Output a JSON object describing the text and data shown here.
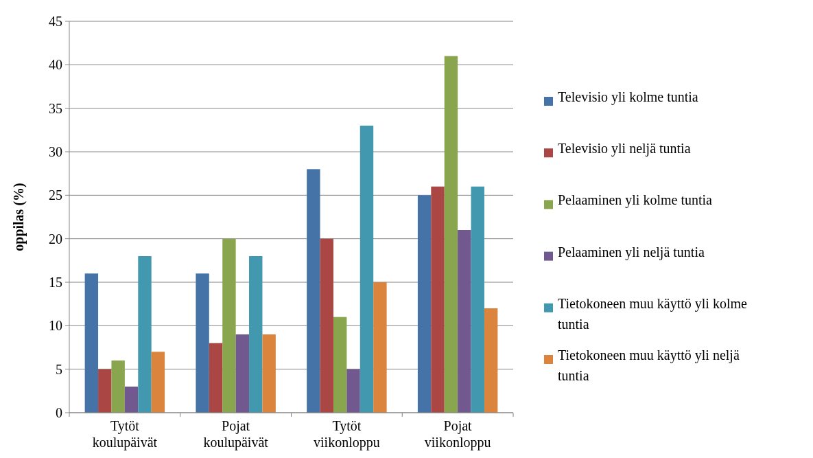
{
  "chart_data": {
    "type": "bar",
    "ylabel": "oppilas (%)",
    "categories": [
      "Tytöt koulupäivät",
      "Pojat koulupäivät",
      "Tytöt viikonloppu",
      "Pojat viikonloppu"
    ],
    "series": [
      {
        "name": "Televisio yli kolme tuntia",
        "color": "#4572a7",
        "values": [
          16,
          16,
          28,
          25
        ]
      },
      {
        "name": "Televisio yli neljä tuntia",
        "color": "#aa4643",
        "values": [
          5,
          8,
          20,
          26
        ]
      },
      {
        "name": "Pelaaminen yli kolme tuntia",
        "color": "#89a54e",
        "values": [
          6,
          20,
          11,
          41
        ]
      },
      {
        "name": "Pelaaminen yli neljä tuntia",
        "color": "#71588f",
        "values": [
          3,
          9,
          5,
          21
        ]
      },
      {
        "name": "Tietokoneen muu käyttö yli kolme tuntia",
        "color": "#4198af",
        "values": [
          18,
          18,
          33,
          26
        ]
      },
      {
        "name": "Tietokoneen muu käyttö yli neljä tuntia",
        "color": "#db843d",
        "values": [
          7,
          9,
          15,
          12
        ]
      }
    ],
    "ylim": [
      0,
      45
    ],
    "yticks": [
      0,
      5,
      10,
      15,
      20,
      25,
      30,
      35,
      40,
      45
    ],
    "grid": "y",
    "legend": "right"
  }
}
